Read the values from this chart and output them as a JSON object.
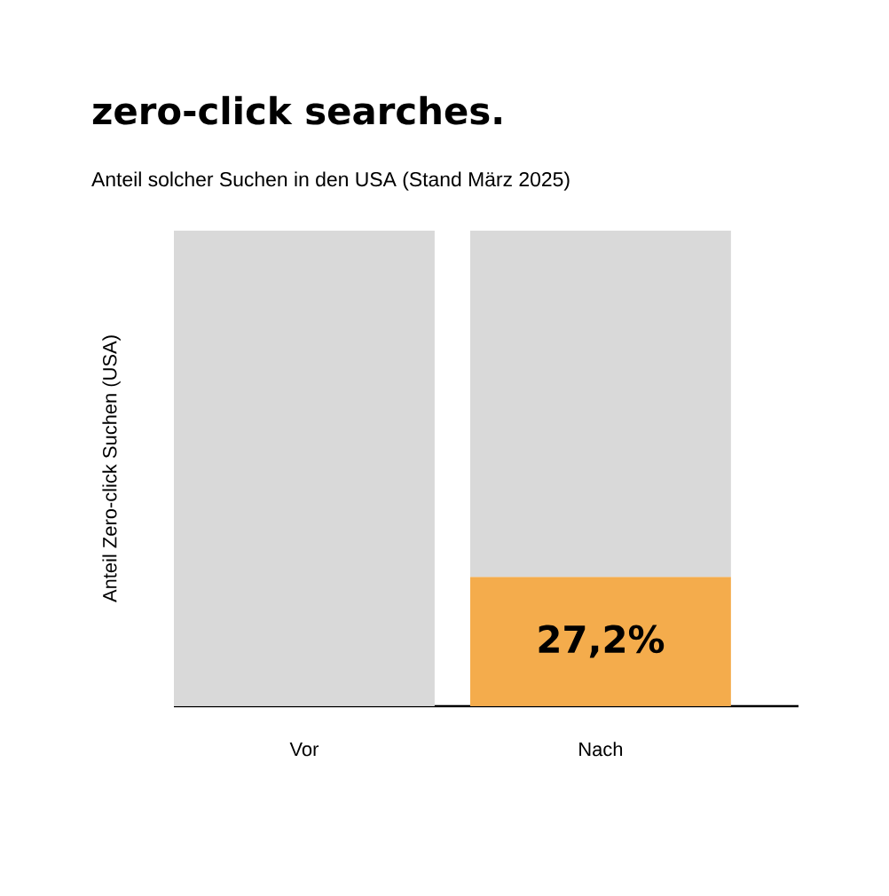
{
  "chart_data": {
    "type": "bar",
    "title": "zero-click searches.",
    "subtitle": "Anteil solcher Suchen in den USA (Stand März 2025)",
    "ylabel": "Anteil Zero-click Suchen (USA)",
    "categories": [
      "Vor",
      "Nach"
    ],
    "stacked": true,
    "ylim": [
      0,
      100
    ],
    "tick_labels": "x",
    "series": [
      {
        "color": "#f4ac4c",
        "values": [
          null,
          27.2
        ],
        "value_labels": [
          null,
          "27,2%"
        ]
      },
      {
        "color": "#d9d9d9",
        "values": [
          100,
          72.8
        ]
      }
    ]
  }
}
